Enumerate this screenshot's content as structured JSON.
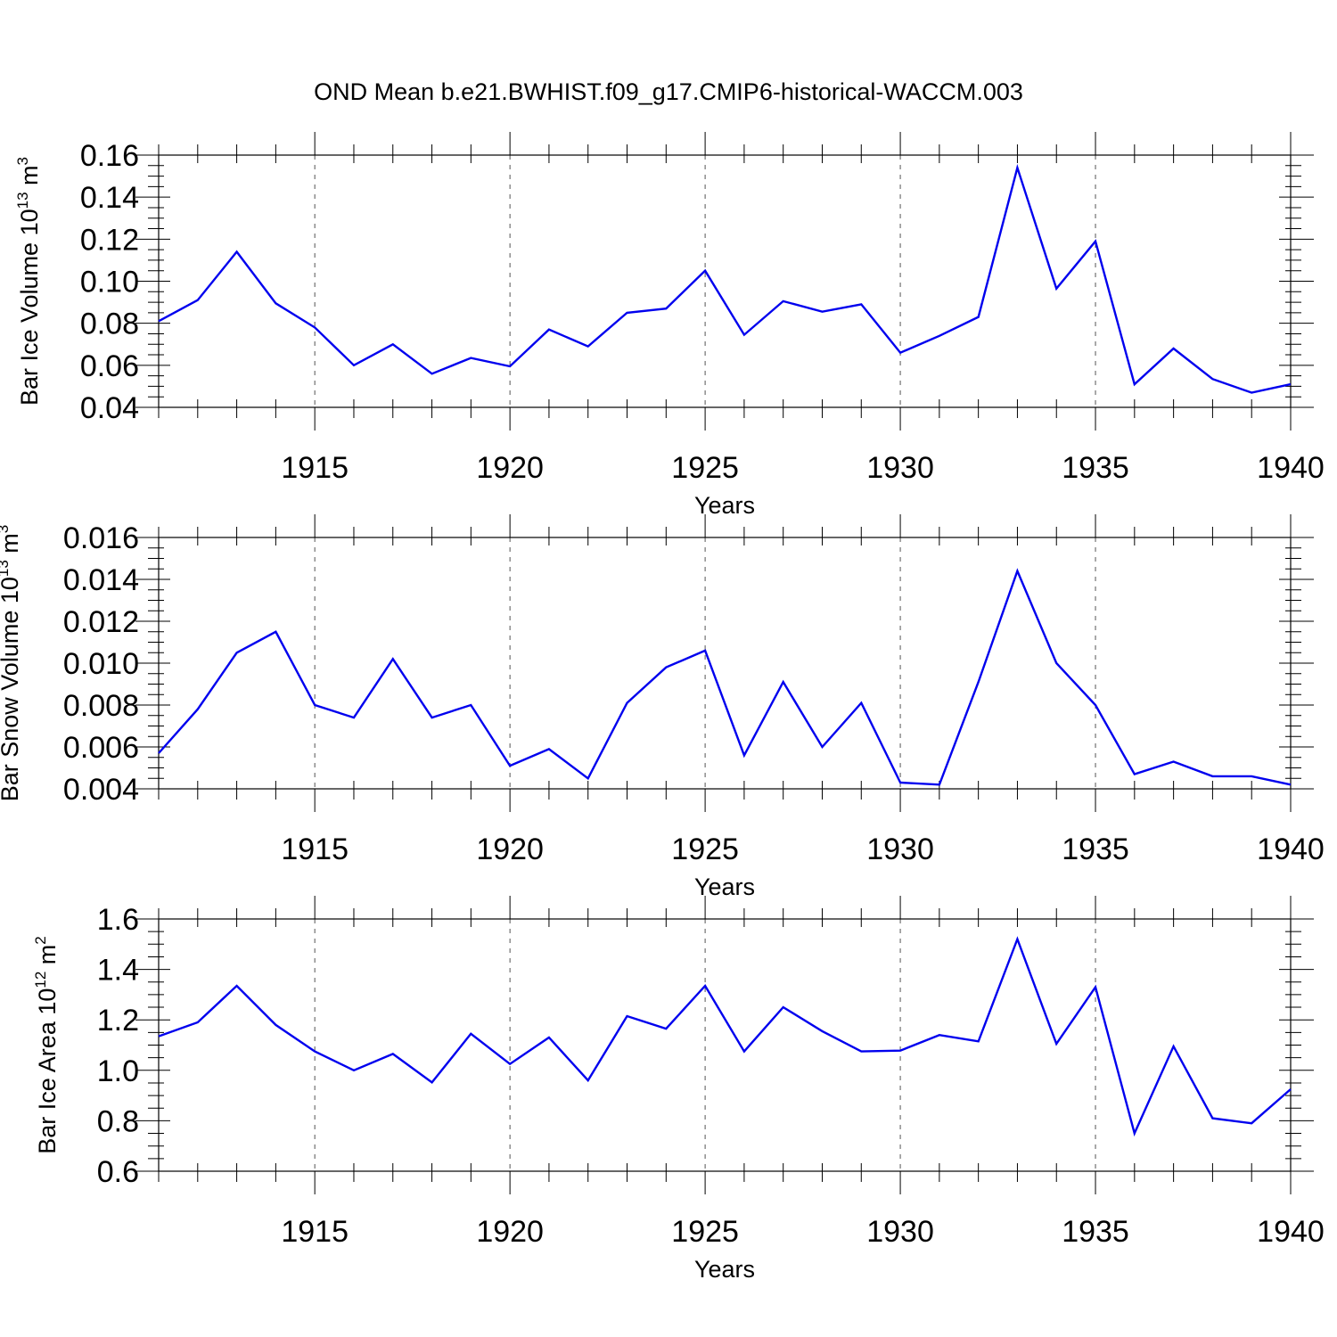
{
  "page_title": "OND Mean b.e21.BWHIST.f09_g17.CMIP6-historical-WACCM.003",
  "colors": {
    "line": "#0000ee",
    "axis": "#000000",
    "grid": "#555555"
  },
  "chart_data": [
    {
      "type": "line",
      "title": "OND Mean b.e21.BWHIST.f09_g17.CMIP6-historical-WACCM.003",
      "ylabel": "Bar Ice Volume",
      "yunit_base": "10",
      "yunit_exp": "13",
      "yunit_tail": " m",
      "yunit_unit_exp": "3",
      "xlabel": "Years",
      "xlim": [
        1911,
        1940
      ],
      "ylim": [
        0.04,
        0.16
      ],
      "x_ticks": [
        "1915",
        "1920",
        "1925",
        "1930",
        "1935",
        "1940"
      ],
      "y_ticks": [
        "0.04",
        "0.06",
        "0.08",
        "0.10",
        "0.12",
        "0.14",
        "0.16"
      ],
      "grid": "vertical dashed at major x ticks",
      "series": [
        {
          "name": "Bar Ice Volume",
          "x": [
            1911,
            1912,
            1913,
            1914,
            1915,
            1916,
            1917,
            1918,
            1919,
            1920,
            1921,
            1922,
            1923,
            1924,
            1925,
            1926,
            1927,
            1928,
            1929,
            1930,
            1931,
            1932,
            1933,
            1934,
            1935,
            1936,
            1937,
            1938,
            1939,
            1940
          ],
          "values": [
            0.081,
            0.091,
            0.114,
            0.0895,
            0.078,
            0.06,
            0.07,
            0.056,
            0.0635,
            0.0595,
            0.077,
            0.069,
            0.085,
            0.087,
            0.105,
            0.0745,
            0.0905,
            0.0855,
            0.089,
            0.066,
            0.074,
            0.083,
            0.154,
            0.0965,
            0.119,
            0.051,
            0.068,
            0.0535,
            0.047,
            0.051
          ]
        }
      ]
    },
    {
      "type": "line",
      "title": "",
      "ylabel": "Bar Snow Volume",
      "yunit_base": "10",
      "yunit_exp": "13",
      "yunit_tail": " m",
      "yunit_unit_exp": "3",
      "xlabel": "Years",
      "xlim": [
        1911,
        1940
      ],
      "ylim": [
        0.004,
        0.016
      ],
      "x_ticks": [
        "1915",
        "1920",
        "1925",
        "1930",
        "1935",
        "1940"
      ],
      "y_ticks": [
        "0.004",
        "0.006",
        "0.008",
        "0.010",
        "0.012",
        "0.014",
        "0.016"
      ],
      "grid": "vertical dashed at major x ticks",
      "series": [
        {
          "name": "Bar Snow Volume",
          "x": [
            1911,
            1912,
            1913,
            1914,
            1915,
            1916,
            1917,
            1918,
            1919,
            1920,
            1921,
            1922,
            1923,
            1924,
            1925,
            1926,
            1927,
            1928,
            1929,
            1930,
            1931,
            1932,
            1933,
            1934,
            1935,
            1936,
            1937,
            1938,
            1939,
            1940
          ],
          "values": [
            0.0057,
            0.0078,
            0.0105,
            0.0115,
            0.008,
            0.0074,
            0.0102,
            0.0074,
            0.008,
            0.0051,
            0.0059,
            0.0045,
            0.0081,
            0.0098,
            0.0106,
            0.0056,
            0.0091,
            0.006,
            0.0081,
            0.0043,
            0.0042,
            0.0091,
            0.0144,
            0.01,
            0.008,
            0.0047,
            0.0053,
            0.0046,
            0.0046,
            0.0042
          ]
        }
      ]
    },
    {
      "type": "line",
      "title": "",
      "ylabel": "Bar Ice Area",
      "yunit_base": "10",
      "yunit_exp": "12",
      "yunit_tail": " m",
      "yunit_unit_exp": "2",
      "xlabel": "Years",
      "xlim": [
        1911,
        1940
      ],
      "ylim": [
        0.6,
        1.6
      ],
      "x_ticks": [
        "1915",
        "1920",
        "1925",
        "1930",
        "1935",
        "1940"
      ],
      "y_ticks": [
        "0.6",
        "0.8",
        "1.0",
        "1.2",
        "1.4",
        "1.6"
      ],
      "grid": "vertical dashed at major x ticks",
      "series": [
        {
          "name": "Bar Ice Area",
          "x": [
            1911,
            1912,
            1913,
            1914,
            1915,
            1916,
            1917,
            1918,
            1919,
            1920,
            1921,
            1922,
            1923,
            1924,
            1925,
            1926,
            1927,
            1928,
            1929,
            1930,
            1931,
            1932,
            1933,
            1934,
            1935,
            1936,
            1937,
            1938,
            1939,
            1940
          ],
          "values": [
            1.135,
            1.19,
            1.335,
            1.18,
            1.075,
            1.0,
            1.065,
            0.952,
            1.145,
            1.025,
            1.13,
            0.96,
            1.215,
            1.165,
            1.335,
            1.075,
            1.25,
            1.155,
            1.075,
            1.078,
            1.14,
            1.115,
            1.52,
            1.105,
            1.33,
            0.75,
            1.095,
            0.81,
            0.79,
            0.925
          ]
        }
      ]
    }
  ]
}
